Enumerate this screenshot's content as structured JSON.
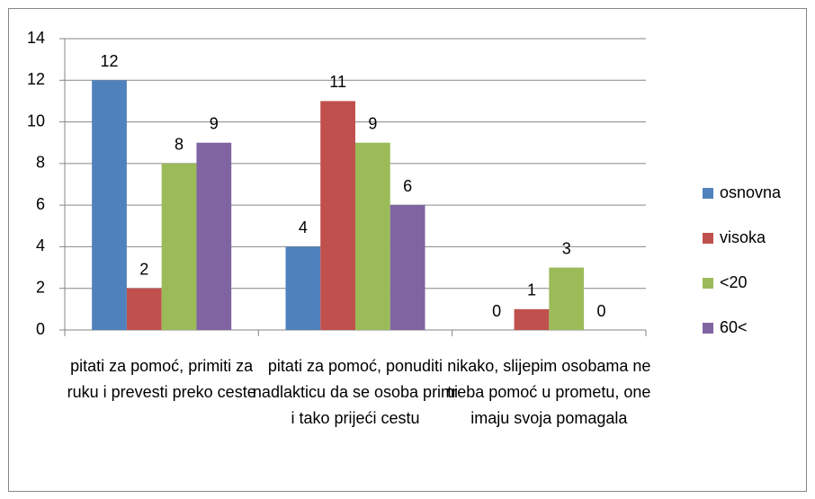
{
  "chart_data": {
    "type": "bar",
    "categories": [
      "pitati za pomoć, primiti za ruku i prevesti preko ceste",
      "pitati za pomoć, ponuditi nadlakticu da se osoba primi i tako prijeći cestu",
      "nikako, slijepim osobama ne treba pomoć u prometu, one imaju svoja pomagala"
    ],
    "series": [
      {
        "name": "osnovna",
        "color": "#4f81bd",
        "values": [
          12,
          4,
          0
        ]
      },
      {
        "name": "visoka",
        "color": "#c0504d",
        "values": [
          2,
          11,
          1
        ]
      },
      {
        "name": "<20",
        "color": "#9bbb59",
        "values": [
          8,
          9,
          3
        ]
      },
      {
        "name": "60<",
        "color": "#8064a2",
        "values": [
          9,
          6,
          0
        ]
      }
    ],
    "ylim": [
      0,
      14
    ],
    "yticks": [
      0,
      2,
      4,
      6,
      8,
      10,
      12,
      14
    ],
    "grid": true,
    "legend": "right"
  }
}
